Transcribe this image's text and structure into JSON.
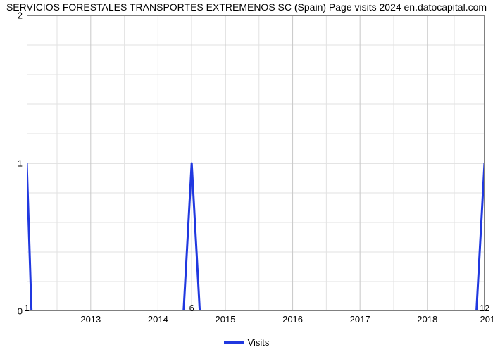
{
  "chart": {
    "type": "line",
    "title": "SERVICIOS FORESTALES TRANSPORTES EXTREMENOS SC (Spain) Page visits 2024 en.datocapital.com",
    "title_fontsize": 14,
    "title_color": "#000000",
    "background_color": "#ffffff",
    "plot_border_color": "#808080",
    "grid": {
      "major_color": "#c8c8c8",
      "minor_color": "#e2e2e2",
      "major_width": 1,
      "minor_width": 1
    },
    "y_axis": {
      "min": 0,
      "max": 2,
      "major_ticks": [
        0,
        1,
        2
      ],
      "minor_ticks": [
        0.2,
        0.4,
        0.6,
        0.8,
        1.2,
        1.4,
        1.6,
        1.8
      ],
      "label_fontsize": 13
    },
    "x_axis": {
      "domain_min": 1,
      "domain_max": 12,
      "visible_min": 2012.05,
      "year_labels": [
        "2013",
        "2014",
        "2015",
        "2016",
        "2017",
        "2018"
      ],
      "year_positions": [
        2013,
        2014,
        2015,
        2016,
        2017,
        2018
      ],
      "edge_labels": {
        "left": "1",
        "mid": "6",
        "right": "12"
      },
      "edge_positions": {
        "left": 2012.05,
        "mid": 2014.5,
        "right": 2018.85
      },
      "year_label_dy": 4,
      "edge_label_dy": -12,
      "label_fontsize": 13,
      "major_tick_positions": [
        2012.05,
        2013,
        2014,
        2014.5,
        2015,
        2016,
        2017,
        2018,
        2018.85
      ],
      "minor_tick_positions": [
        2012.5,
        2013.5,
        2015.5,
        2016.5,
        2017.5,
        2018.4
      ]
    },
    "series": {
      "name": "Visits",
      "color": "#2038e0",
      "line_width": 3,
      "x": [
        2012.05,
        2012.12,
        2012.18,
        2014.38,
        2014.5,
        2014.62,
        2018.73,
        2018.85
      ],
      "y": [
        1,
        0,
        0,
        0,
        1,
        0,
        0,
        1
      ]
    },
    "legend": {
      "label": "Visits",
      "swatch_color": "#2038e0",
      "font_size": 13
    }
  }
}
